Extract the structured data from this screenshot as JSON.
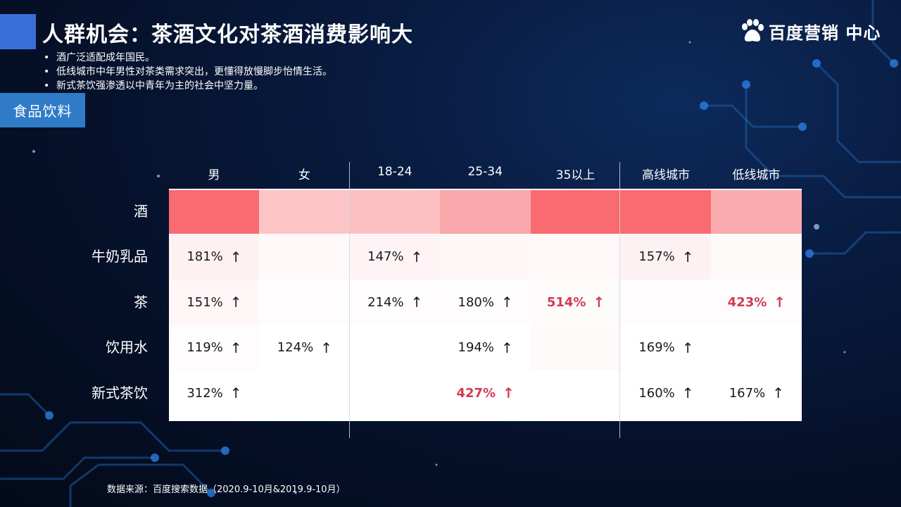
{
  "header": {
    "title": "人群机会：茶酒文化对茶酒消费影响大",
    "logo_text": "百度营销 中心"
  },
  "bullets": [
    "酒广泛适配成年国民。",
    "低线城市中年男性对茶类需求突出，更懂得放慢脚步怡情生活。",
    "新式茶饮强渗透以中青年为主的社会中坚力量。"
  ],
  "category": "食品饮料",
  "table": {
    "columns": [
      "男",
      "女",
      "18-24",
      "25-34",
      "35以上",
      "高线城市",
      "低线城市"
    ],
    "rows": [
      {
        "label": "酒",
        "cells": [
          {
            "text": "",
            "bg": "#f96b70"
          },
          {
            "text": "",
            "bg": "#fdc4c6"
          },
          {
            "text": "",
            "bg": "#fdc0c2"
          },
          {
            "text": "",
            "bg": "#faa8ab"
          },
          {
            "text": "",
            "bg": "#f96b70"
          },
          {
            "text": "",
            "bg": "#f96b70"
          },
          {
            "text": "",
            "bg": "#faabae"
          }
        ]
      },
      {
        "label": "牛奶乳品",
        "cells": [
          {
            "text": "181%",
            "bg": "#fdf1f2"
          },
          {
            "text": "",
            "bg": "#fef8f9"
          },
          {
            "text": "147%",
            "bg": "#fef4f5"
          },
          {
            "text": "",
            "bg": "#fef6f7"
          },
          {
            "text": "",
            "bg": "#fef8f8"
          },
          {
            "text": "157%",
            "bg": "#fdf2f3"
          },
          {
            "text": "",
            "bg": "#fefafa"
          }
        ]
      },
      {
        "label": "茶",
        "cells": [
          {
            "text": "151%",
            "bg": "#fef6f7"
          },
          {
            "text": "",
            "bg": "#fefcfc"
          },
          {
            "text": "214%",
            "bg": "#fefcfc"
          },
          {
            "text": "180%",
            "bg": "#fefcfc"
          },
          {
            "text": "514%",
            "bg": "#fefbfb",
            "hl": true
          },
          {
            "text": "",
            "bg": "#fefcfc"
          },
          {
            "text": "423%",
            "bg": "#fefcfc",
            "hl": true
          }
        ]
      },
      {
        "label": "饮用水",
        "cells": [
          {
            "text": "119%",
            "bg": "#fefcfc"
          },
          {
            "text": "124%",
            "bg": "#ffffff"
          },
          {
            "text": "",
            "bg": "#ffffff"
          },
          {
            "text": "194%",
            "bg": "#ffffff"
          },
          {
            "text": "",
            "bg": "#fefafa"
          },
          {
            "text": "169%",
            "bg": "#ffffff"
          },
          {
            "text": "",
            "bg": "#ffffff"
          }
        ]
      },
      {
        "label": "新式茶饮",
        "cells": [
          {
            "text": "312%",
            "bg": "#ffffff"
          },
          {
            "text": "",
            "bg": "#ffffff"
          },
          {
            "text": "",
            "bg": "#ffffff"
          },
          {
            "text": "427%",
            "bg": "#ffffff",
            "hl": true
          },
          {
            "text": "",
            "bg": "#ffffff"
          },
          {
            "text": "160%",
            "bg": "#ffffff"
          },
          {
            "text": "167%",
            "bg": "#ffffff"
          }
        ]
      }
    ],
    "arrow": "↑"
  },
  "source": "数据来源：百度搜索数据（2020.9-10月&2019.9-10月）",
  "colors": {
    "accent_blue": "#3a6fd8",
    "tag_blue": "#2f7bc7",
    "highlight_red": "#d23b55"
  }
}
